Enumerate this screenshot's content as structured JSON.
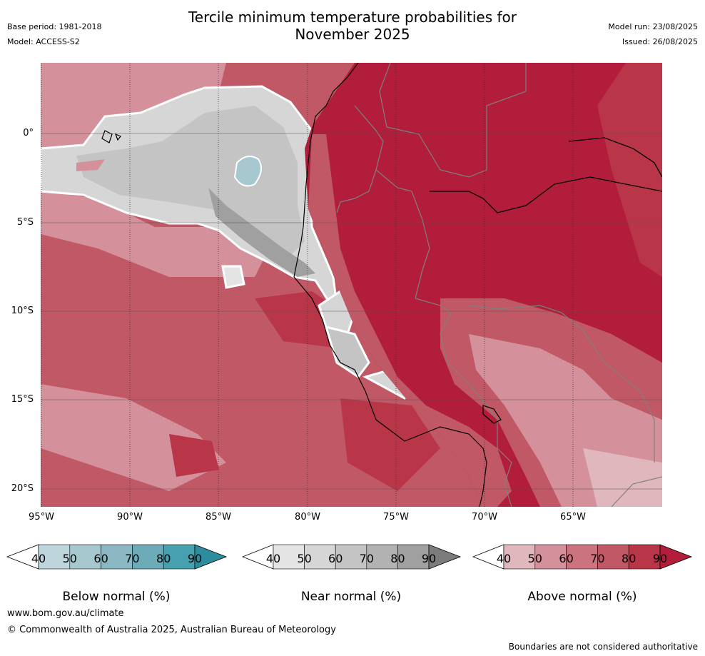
{
  "title_line1": "Tercile minimum temperature probabilities for",
  "title_line2": "November 2025",
  "meta_left": {
    "base_period": "Base period: 1981-2018",
    "model": "Model: ACCESS-S2"
  },
  "meta_right": {
    "model_run": "Model run: 23/08/2025",
    "issued": "Issued: 26/08/2025"
  },
  "lat_labels": [
    "0°",
    "5°S",
    "10°S",
    "15°S",
    "20°S"
  ],
  "lon_labels": [
    "95°W",
    "90°W",
    "85°W",
    "80°W",
    "75°W",
    "70°W",
    "65°W"
  ],
  "colorbars": [
    {
      "title": "Below normal (%)",
      "ticks": [
        "40",
        "50",
        "60",
        "70",
        "80",
        "90"
      ],
      "colors": [
        "#bfd5dc",
        "#a8c8d0",
        "#8bb8c3",
        "#6cabb7",
        "#47a0ae",
        "#2d8c9d"
      ]
    },
    {
      "title": "Near normal (%)",
      "ticks": [
        "40",
        "50",
        "60",
        "70",
        "80",
        "90"
      ],
      "colors": [
        "#e4e4e4",
        "#d6d6d6",
        "#c4c4c4",
        "#b2b2b2",
        "#a0a0a0",
        "#7c7c7c"
      ]
    },
    {
      "title": "Above normal (%)",
      "ticks": [
        "40",
        "50",
        "60",
        "70",
        "80",
        "90"
      ],
      "colors": [
        "#dfb7bd",
        "#d4919b",
        "#cb737f",
        "#c15866",
        "#b93649",
        "#b11d3a"
      ]
    }
  ],
  "footer": {
    "url": "www.bom.gov.au/climate",
    "copyright": "© Commonwealth of Australia 2025, Australian Bureau of Meteorology",
    "note": "Boundaries are not considered authoritative"
  }
}
